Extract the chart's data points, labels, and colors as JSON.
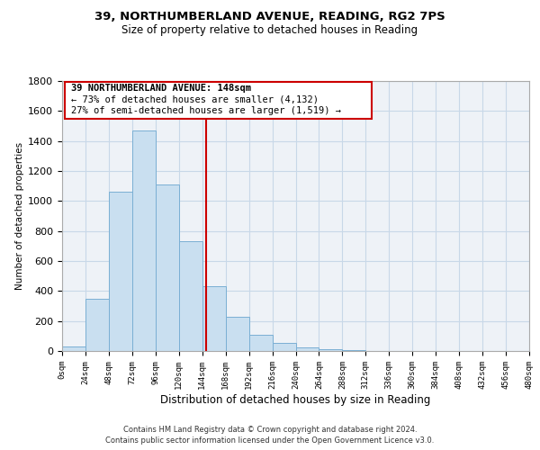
{
  "title": "39, NORTHUMBERLAND AVENUE, READING, RG2 7PS",
  "subtitle": "Size of property relative to detached houses in Reading",
  "xlabel": "Distribution of detached houses by size in Reading",
  "ylabel": "Number of detached properties",
  "bin_edges": [
    0,
    24,
    48,
    72,
    96,
    120,
    144,
    168,
    192,
    216,
    240,
    264,
    288,
    312,
    336,
    360,
    384,
    408,
    432,
    456,
    480
  ],
  "bin_counts": [
    30,
    350,
    1060,
    1470,
    1110,
    735,
    435,
    230,
    110,
    55,
    25,
    10,
    5,
    2,
    1,
    0,
    0,
    0,
    0,
    0
  ],
  "bar_color": "#c9dff0",
  "bar_edge_color": "#7aafd4",
  "vline_color": "#cc0000",
  "vline_x": 148,
  "annotation_line1": "39 NORTHUMBERLAND AVENUE: 148sqm",
  "annotation_line2": "← 73% of detached houses are smaller (4,132)",
  "annotation_line3": "27% of semi-detached houses are larger (1,519) →",
  "annotation_box_color": "#cc0000",
  "annotation_text_color": "#000000",
  "annotation_bg_color": "#ffffff",
  "ylim": [
    0,
    1800
  ],
  "yticks": [
    0,
    200,
    400,
    600,
    800,
    1000,
    1200,
    1400,
    1600,
    1800
  ],
  "xtick_labels": [
    "0sqm",
    "24sqm",
    "48sqm",
    "72sqm",
    "96sqm",
    "120sqm",
    "144sqm",
    "168sqm",
    "192sqm",
    "216sqm",
    "240sqm",
    "264sqm",
    "288sqm",
    "312sqm",
    "336sqm",
    "360sqm",
    "384sqm",
    "408sqm",
    "432sqm",
    "456sqm",
    "480sqm"
  ],
  "grid_color": "#c8d8e8",
  "footer_line1": "Contains HM Land Registry data © Crown copyright and database right 2024.",
  "footer_line2": "Contains public sector information licensed under the Open Government Licence v3.0.",
  "bg_color": "#eef2f7",
  "figsize": [
    6.0,
    5.0
  ],
  "dpi": 100
}
